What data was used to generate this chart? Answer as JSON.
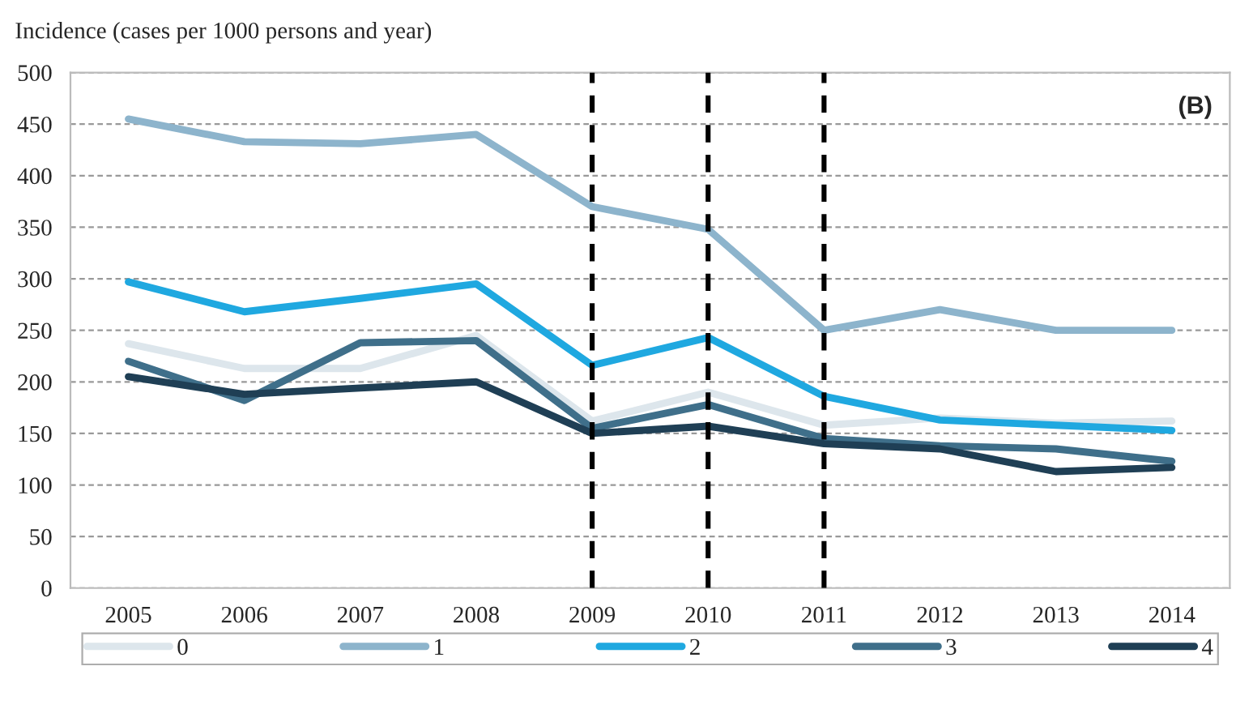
{
  "chart_data": {
    "type": "line",
    "ylabel": "Incidence (cases per 1000 persons and year)",
    "categories": [
      "2005",
      "2006",
      "2007",
      "2008",
      "2009",
      "2010",
      "2011",
      "2012",
      "2013",
      "2014"
    ],
    "series": [
      {
        "name": "0",
        "color": "#dde6ec",
        "values": [
          237,
          213,
          213,
          245,
          162,
          190,
          158,
          165,
          160,
          162
        ]
      },
      {
        "name": "1",
        "color": "#8db4cc",
        "values": [
          455,
          433,
          431,
          440,
          370,
          348,
          250,
          270,
          250,
          250
        ]
      },
      {
        "name": "2",
        "color": "#1fa8e0",
        "values": [
          297,
          268,
          281,
          295,
          216,
          243,
          186,
          163,
          158,
          153
        ]
      },
      {
        "name": "3",
        "color": "#3f6f8a",
        "values": [
          220,
          182,
          238,
          240,
          155,
          178,
          145,
          138,
          135,
          123
        ]
      },
      {
        "name": "4",
        "color": "#1f3f55",
        "values": [
          205,
          188,
          194,
          200,
          150,
          157,
          140,
          135,
          113,
          117
        ]
      }
    ],
    "ylim": [
      0,
      500
    ],
    "yticks": [
      0,
      50,
      100,
      150,
      200,
      250,
      300,
      350,
      400,
      450,
      500
    ],
    "grid": "y",
    "legend": "bottom",
    "marker": "none",
    "line_style": "solid",
    "ref_lines": [
      {
        "axis": "x",
        "value": "2009",
        "color": "#000000",
        "line_style": "dashed"
      },
      {
        "axis": "x",
        "value": "2010",
        "color": "#000000",
        "line_style": "dashed"
      },
      {
        "axis": "x",
        "value": "2011",
        "color": "#000000",
        "line_style": "dashed"
      }
    ],
    "annotations": [
      "(B)"
    ]
  }
}
